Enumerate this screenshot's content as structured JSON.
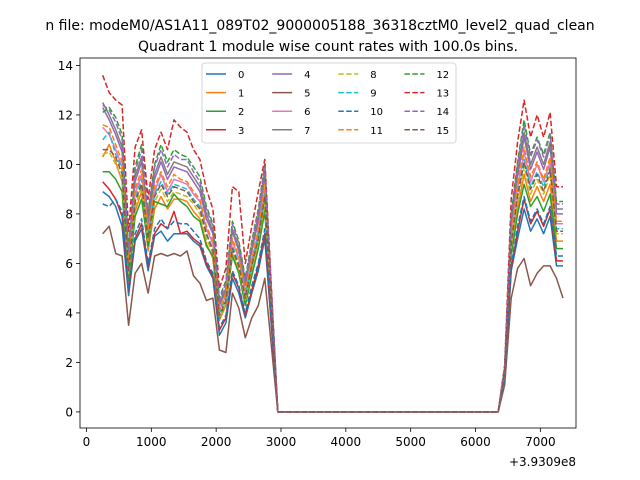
{
  "suptitle": "n file: modeM0/AS1A11_089T02_9000005188_36318cztM0_level2_quad_clean",
  "chart_data": {
    "type": "line",
    "title": "Quadrant 1 module wise count rates with 100.0s bins.",
    "xlabel": "",
    "ylabel": "",
    "offset_label": "+3.9309e8",
    "xlim": [
      -100,
      7550
    ],
    "ylim": [
      -0.65,
      14.3
    ],
    "xticks": [
      0,
      1000,
      2000,
      3000,
      4000,
      5000,
      6000,
      7000
    ],
    "xtick_labels": [
      "0",
      "1000",
      "2000",
      "3000",
      "4000",
      "5000",
      "6000",
      "7000"
    ],
    "yticks": [
      0,
      2,
      4,
      6,
      8,
      10,
      12,
      14
    ],
    "ytick_labels": [
      "0",
      "2",
      "4",
      "6",
      "8",
      "10",
      "12",
      "14"
    ],
    "legend_location": "upper center",
    "legend_columns": 4,
    "x": [
      250,
      350,
      450,
      550,
      650,
      750,
      850,
      950,
      1050,
      1150,
      1250,
      1350,
      1450,
      1550,
      1650,
      1750,
      1850,
      1950,
      2050,
      2150,
      2250,
      2350,
      2450,
      2550,
      2650,
      2750,
      2950,
      6350,
      6450,
      6550,
      6650,
      6750,
      6850,
      6950,
      7050,
      7150,
      7250,
      7350
    ],
    "series": [
      {
        "name": "0",
        "color": "#1f77b4",
        "dash": "solid",
        "values": [
          8.9,
          8.7,
          8.3,
          7.5,
          4.7,
          6.9,
          7.4,
          5.7,
          7.1,
          7.3,
          6.9,
          7.2,
          7.2,
          7.2,
          6.9,
          6.7,
          5.9,
          5.4,
          3.1,
          3.6,
          5.4,
          4.8,
          3.8,
          4.8,
          5.7,
          7.0,
          0,
          0,
          1.3,
          5.7,
          7.0,
          8.2,
          7.3,
          7.8,
          7.2,
          7.9,
          5.9,
          5.9
        ]
      },
      {
        "name": "1",
        "color": "#ff7f0e",
        "dash": "solid",
        "values": [
          10.3,
          10.8,
          10.1,
          9.3,
          5.5,
          8.1,
          8.9,
          6.5,
          8.2,
          8.7,
          8.2,
          8.6,
          8.6,
          8.5,
          8.1,
          7.8,
          6.8,
          6.2,
          3.7,
          4.3,
          6.4,
          5.7,
          4.4,
          5.6,
          6.7,
          8.3,
          0,
          0,
          1.5,
          6.5,
          8.2,
          9.6,
          8.5,
          9.1,
          8.5,
          9.2,
          6.9,
          6.9
        ]
      },
      {
        "name": "2",
        "color": "#2ca02c",
        "dash": "solid",
        "values": [
          9.7,
          9.7,
          9.4,
          8.9,
          5.3,
          7.9,
          8.6,
          6.7,
          8.5,
          8.4,
          8.3,
          8.8,
          8.5,
          8.3,
          7.9,
          7.7,
          6.7,
          6.3,
          3.8,
          4.4,
          6.3,
          5.6,
          4.3,
          5.5,
          6.6,
          8.1,
          0,
          0,
          1.5,
          6.3,
          8.0,
          9.2,
          8.3,
          8.7,
          8.1,
          8.8,
          6.6,
          6.6
        ]
      },
      {
        "name": "3",
        "color": "#d62728",
        "dash": "solid",
        "values": [
          9.3,
          9.0,
          8.6,
          7.9,
          4.9,
          7.0,
          7.6,
          5.9,
          7.2,
          7.6,
          7.4,
          8.1,
          7.2,
          7.3,
          7.0,
          6.8,
          6.0,
          5.5,
          3.3,
          3.8,
          5.6,
          5.0,
          3.9,
          4.9,
          5.9,
          7.2,
          0,
          0,
          1.3,
          5.8,
          7.3,
          8.6,
          7.6,
          8.1,
          7.5,
          8.2,
          6.1,
          6.1
        ]
      },
      {
        "name": "4",
        "color": "#9467bd",
        "dash": "solid",
        "values": [
          12.3,
          11.8,
          11.2,
          10.5,
          6.2,
          9.3,
          10.1,
          7.6,
          9.4,
          10.1,
          9.4,
          9.9,
          9.8,
          9.7,
          9.3,
          8.9,
          7.8,
          7.2,
          4.3,
          4.9,
          7.3,
          6.5,
          5.1,
          6.5,
          7.7,
          9.5,
          0,
          0,
          1.7,
          7.5,
          9.5,
          11.1,
          9.8,
          10.5,
          9.8,
          10.7,
          8.0,
          8.0
        ]
      },
      {
        "name": "5",
        "color": "#8c564b",
        "dash": "solid",
        "values": [
          7.2,
          7.5,
          6.4,
          6.3,
          3.5,
          5.6,
          6.0,
          4.8,
          6.3,
          6.4,
          6.3,
          6.4,
          6.3,
          6.5,
          5.5,
          5.2,
          4.5,
          4.6,
          2.5,
          2.4,
          4.8,
          4.2,
          3.0,
          3.8,
          4.3,
          5.4,
          0,
          0,
          1.1,
          4.6,
          5.8,
          6.2,
          5.1,
          5.6,
          5.9,
          5.9,
          5.4,
          4.6
        ]
      },
      {
        "name": "6",
        "color": "#e377c2",
        "dash": "solid",
        "values": [
          11.5,
          11.2,
          10.6,
          9.9,
          5.9,
          8.8,
          9.6,
          7.3,
          8.9,
          9.6,
          8.9,
          9.4,
          9.3,
          9.2,
          8.8,
          8.5,
          7.4,
          6.8,
          4.1,
          4.7,
          6.9,
          6.2,
          4.8,
          6.1,
          7.3,
          9.0,
          0,
          0,
          1.6,
          7.1,
          9.0,
          10.5,
          9.3,
          10.0,
          9.3,
          10.1,
          7.6,
          7.6
        ]
      },
      {
        "name": "7",
        "color": "#7f7f7f",
        "dash": "solid",
        "values": [
          12.5,
          12.0,
          11.4,
          10.7,
          6.3,
          9.5,
          10.3,
          7.8,
          9.6,
          10.3,
          9.6,
          10.1,
          10.0,
          9.9,
          9.5,
          9.1,
          8.0,
          7.3,
          4.4,
          5.0,
          7.4,
          6.6,
          5.2,
          6.6,
          7.9,
          9.7,
          0,
          0,
          1.7,
          7.7,
          9.7,
          11.3,
          10.0,
          10.7,
          10.0,
          10.9,
          8.2,
          8.2
        ]
      },
      {
        "name": "8",
        "color": "#bcbd22",
        "dash": "dashed",
        "values": [
          10.4,
          10.5,
          10.0,
          9.4,
          5.6,
          8.3,
          9.1,
          6.9,
          8.5,
          9.0,
          8.5,
          8.9,
          8.8,
          8.7,
          8.4,
          8.0,
          7.0,
          6.4,
          3.8,
          4.4,
          6.5,
          5.8,
          4.5,
          5.8,
          6.9,
          8.5,
          0,
          0,
          1.5,
          6.7,
          8.5,
          9.9,
          8.8,
          9.4,
          8.8,
          9.6,
          7.2,
          7.2
        ]
      },
      {
        "name": "9",
        "color": "#17becf",
        "dash": "dashed",
        "values": [
          11.0,
          11.3,
          10.4,
          9.8,
          5.8,
          8.6,
          9.4,
          7.1,
          8.8,
          9.3,
          8.8,
          9.2,
          9.1,
          9.0,
          8.6,
          8.3,
          7.2,
          6.6,
          4.0,
          4.6,
          6.7,
          6.0,
          4.7,
          6.0,
          7.1,
          8.8,
          0,
          0,
          1.6,
          6.9,
          8.8,
          10.2,
          9.1,
          9.7,
          9.1,
          9.9,
          7.4,
          7.4
        ]
      },
      {
        "name": "10",
        "color": "#1f77b4",
        "dash": "dashed",
        "values": [
          8.4,
          8.3,
          8.6,
          8.1,
          4.9,
          7.2,
          7.8,
          6.0,
          7.4,
          7.8,
          7.4,
          7.7,
          7.6,
          7.6,
          7.3,
          7.0,
          6.1,
          5.6,
          3.4,
          3.9,
          5.7,
          5.1,
          4.0,
          5.1,
          6.0,
          7.4,
          0,
          0,
          1.3,
          5.9,
          7.5,
          8.7,
          7.7,
          8.2,
          7.6,
          8.3,
          6.3,
          6.3
        ]
      },
      {
        "name": "11",
        "color": "#ff7f0e",
        "dash": "dashed",
        "values": [
          11.6,
          11.5,
          10.8,
          10.1,
          6.0,
          9.0,
          9.8,
          7.4,
          9.1,
          9.7,
          9.1,
          9.6,
          9.4,
          9.3,
          8.9,
          8.6,
          7.5,
          6.9,
          4.1,
          4.8,
          7.0,
          6.3,
          4.9,
          6.2,
          7.4,
          9.2,
          0,
          0,
          1.6,
          7.2,
          9.2,
          10.7,
          9.5,
          10.1,
          9.4,
          10.3,
          7.7,
          7.7
        ]
      },
      {
        "name": "12",
        "color": "#2ca02c",
        "dash": "dashed",
        "values": [
          12.1,
          12.3,
          11.9,
          11.2,
          6.6,
          9.9,
          10.8,
          8.1,
          10.0,
          10.8,
          10.1,
          10.6,
          10.4,
          10.3,
          9.9,
          9.5,
          8.3,
          7.6,
          4.6,
          5.3,
          7.7,
          6.9,
          5.4,
          6.9,
          8.2,
          10.0,
          0,
          0,
          1.8,
          8.0,
          10.1,
          11.8,
          10.4,
          11.1,
          10.4,
          11.3,
          8.5,
          8.5
        ]
      },
      {
        "name": "13",
        "color": "#d62728",
        "dash": "dashed",
        "values": [
          13.6,
          12.9,
          12.6,
          12.4,
          7.3,
          10.7,
          11.4,
          8.6,
          10.6,
          11.3,
          10.6,
          11.8,
          11.5,
          11.3,
          10.6,
          10.2,
          9.0,
          8.2,
          5.0,
          5.8,
          9.1,
          8.9,
          6.0,
          7.5,
          8.9,
          10.2,
          0,
          0,
          1.9,
          8.6,
          10.9,
          12.6,
          11.1,
          12.0,
          11.1,
          12.1,
          9.1,
          9.1
        ]
      },
      {
        "name": "14",
        "color": "#9467bd",
        "dash": "dashed",
        "values": [
          12.4,
          12.2,
          11.7,
          11.0,
          6.5,
          9.7,
          10.6,
          8.0,
          9.9,
          10.6,
          9.9,
          10.4,
          10.2,
          10.2,
          9.7,
          9.3,
          8.2,
          7.5,
          4.5,
          5.2,
          7.6,
          6.8,
          5.3,
          6.8,
          8.1,
          9.9,
          0,
          0,
          1.8,
          7.9,
          10.0,
          11.6,
          10.3,
          11.0,
          10.3,
          11.2,
          8.4,
          8.4
        ]
      },
      {
        "name": "15",
        "color": "#8c564b",
        "dash": "dashed",
        "values": [
          10.6,
          10.6,
          10.3,
          9.6,
          5.7,
          8.5,
          9.2,
          7.0,
          8.7,
          9.2,
          8.7,
          9.1,
          9.0,
          8.9,
          8.5,
          8.2,
          7.2,
          6.5,
          3.9,
          4.5,
          6.6,
          5.9,
          4.6,
          5.9,
          7.0,
          8.7,
          0,
          0,
          1.6,
          6.8,
          8.7,
          10.1,
          9.0,
          9.6,
          8.9,
          9.8,
          7.3,
          7.3
        ]
      }
    ]
  }
}
